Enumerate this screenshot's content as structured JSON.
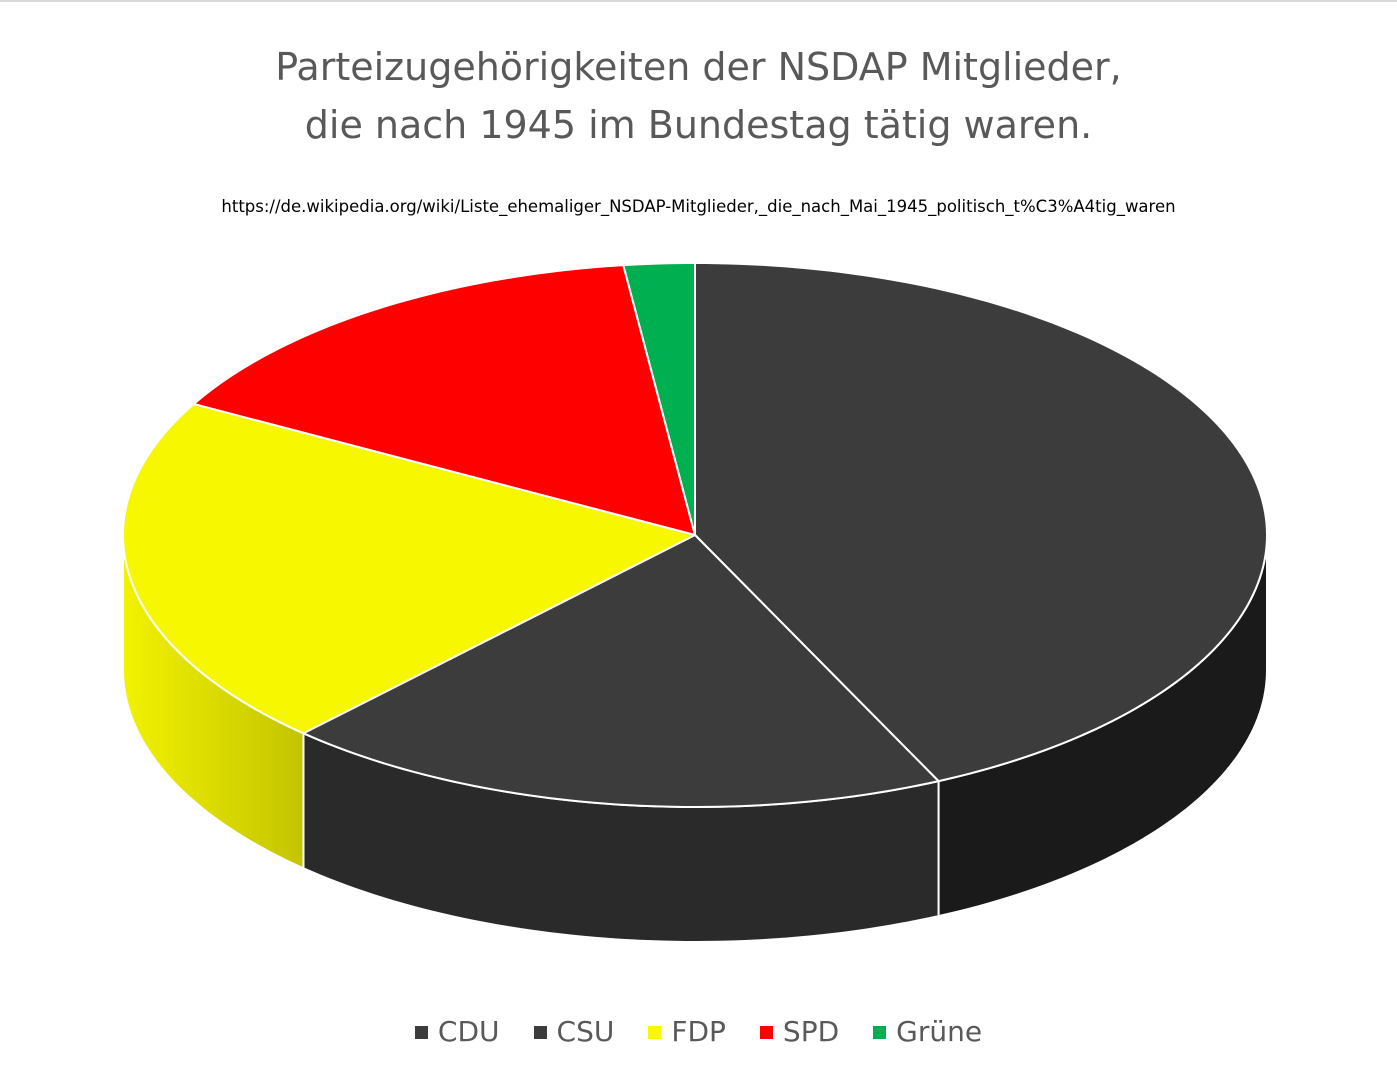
{
  "chart_data": {
    "type": "pie",
    "title_lines": [
      "Parteizugehörigkeiten der NSDAP Mitglieder,",
      "die nach 1945 im Bundestag tätig waren."
    ],
    "subtitle": "https://de.wikipedia.org/wiki/Liste_ehemaliger_NSDAP-Mitglieder,_die_nach_Mai_1945_politisch_t%C3%A4tig_waren",
    "legend_position": "bottom",
    "slices": [
      {
        "name": "CDU",
        "value": 43,
        "color": "#3c3c3c",
        "side_color": "#1a1a1a"
      },
      {
        "name": "CSU",
        "value": 19,
        "color": "#3c3c3c",
        "side_color": "#2a2a2a"
      },
      {
        "name": "FDP",
        "value": 21,
        "color": "#f7f700",
        "side_color": "#c9c900"
      },
      {
        "name": "SPD",
        "value": 15,
        "color": "#ff0000",
        "side_color": "#b00000"
      },
      {
        "name": "Grüne",
        "value": 2,
        "color": "#00b050",
        "side_color": "#007a38"
      }
    ]
  }
}
